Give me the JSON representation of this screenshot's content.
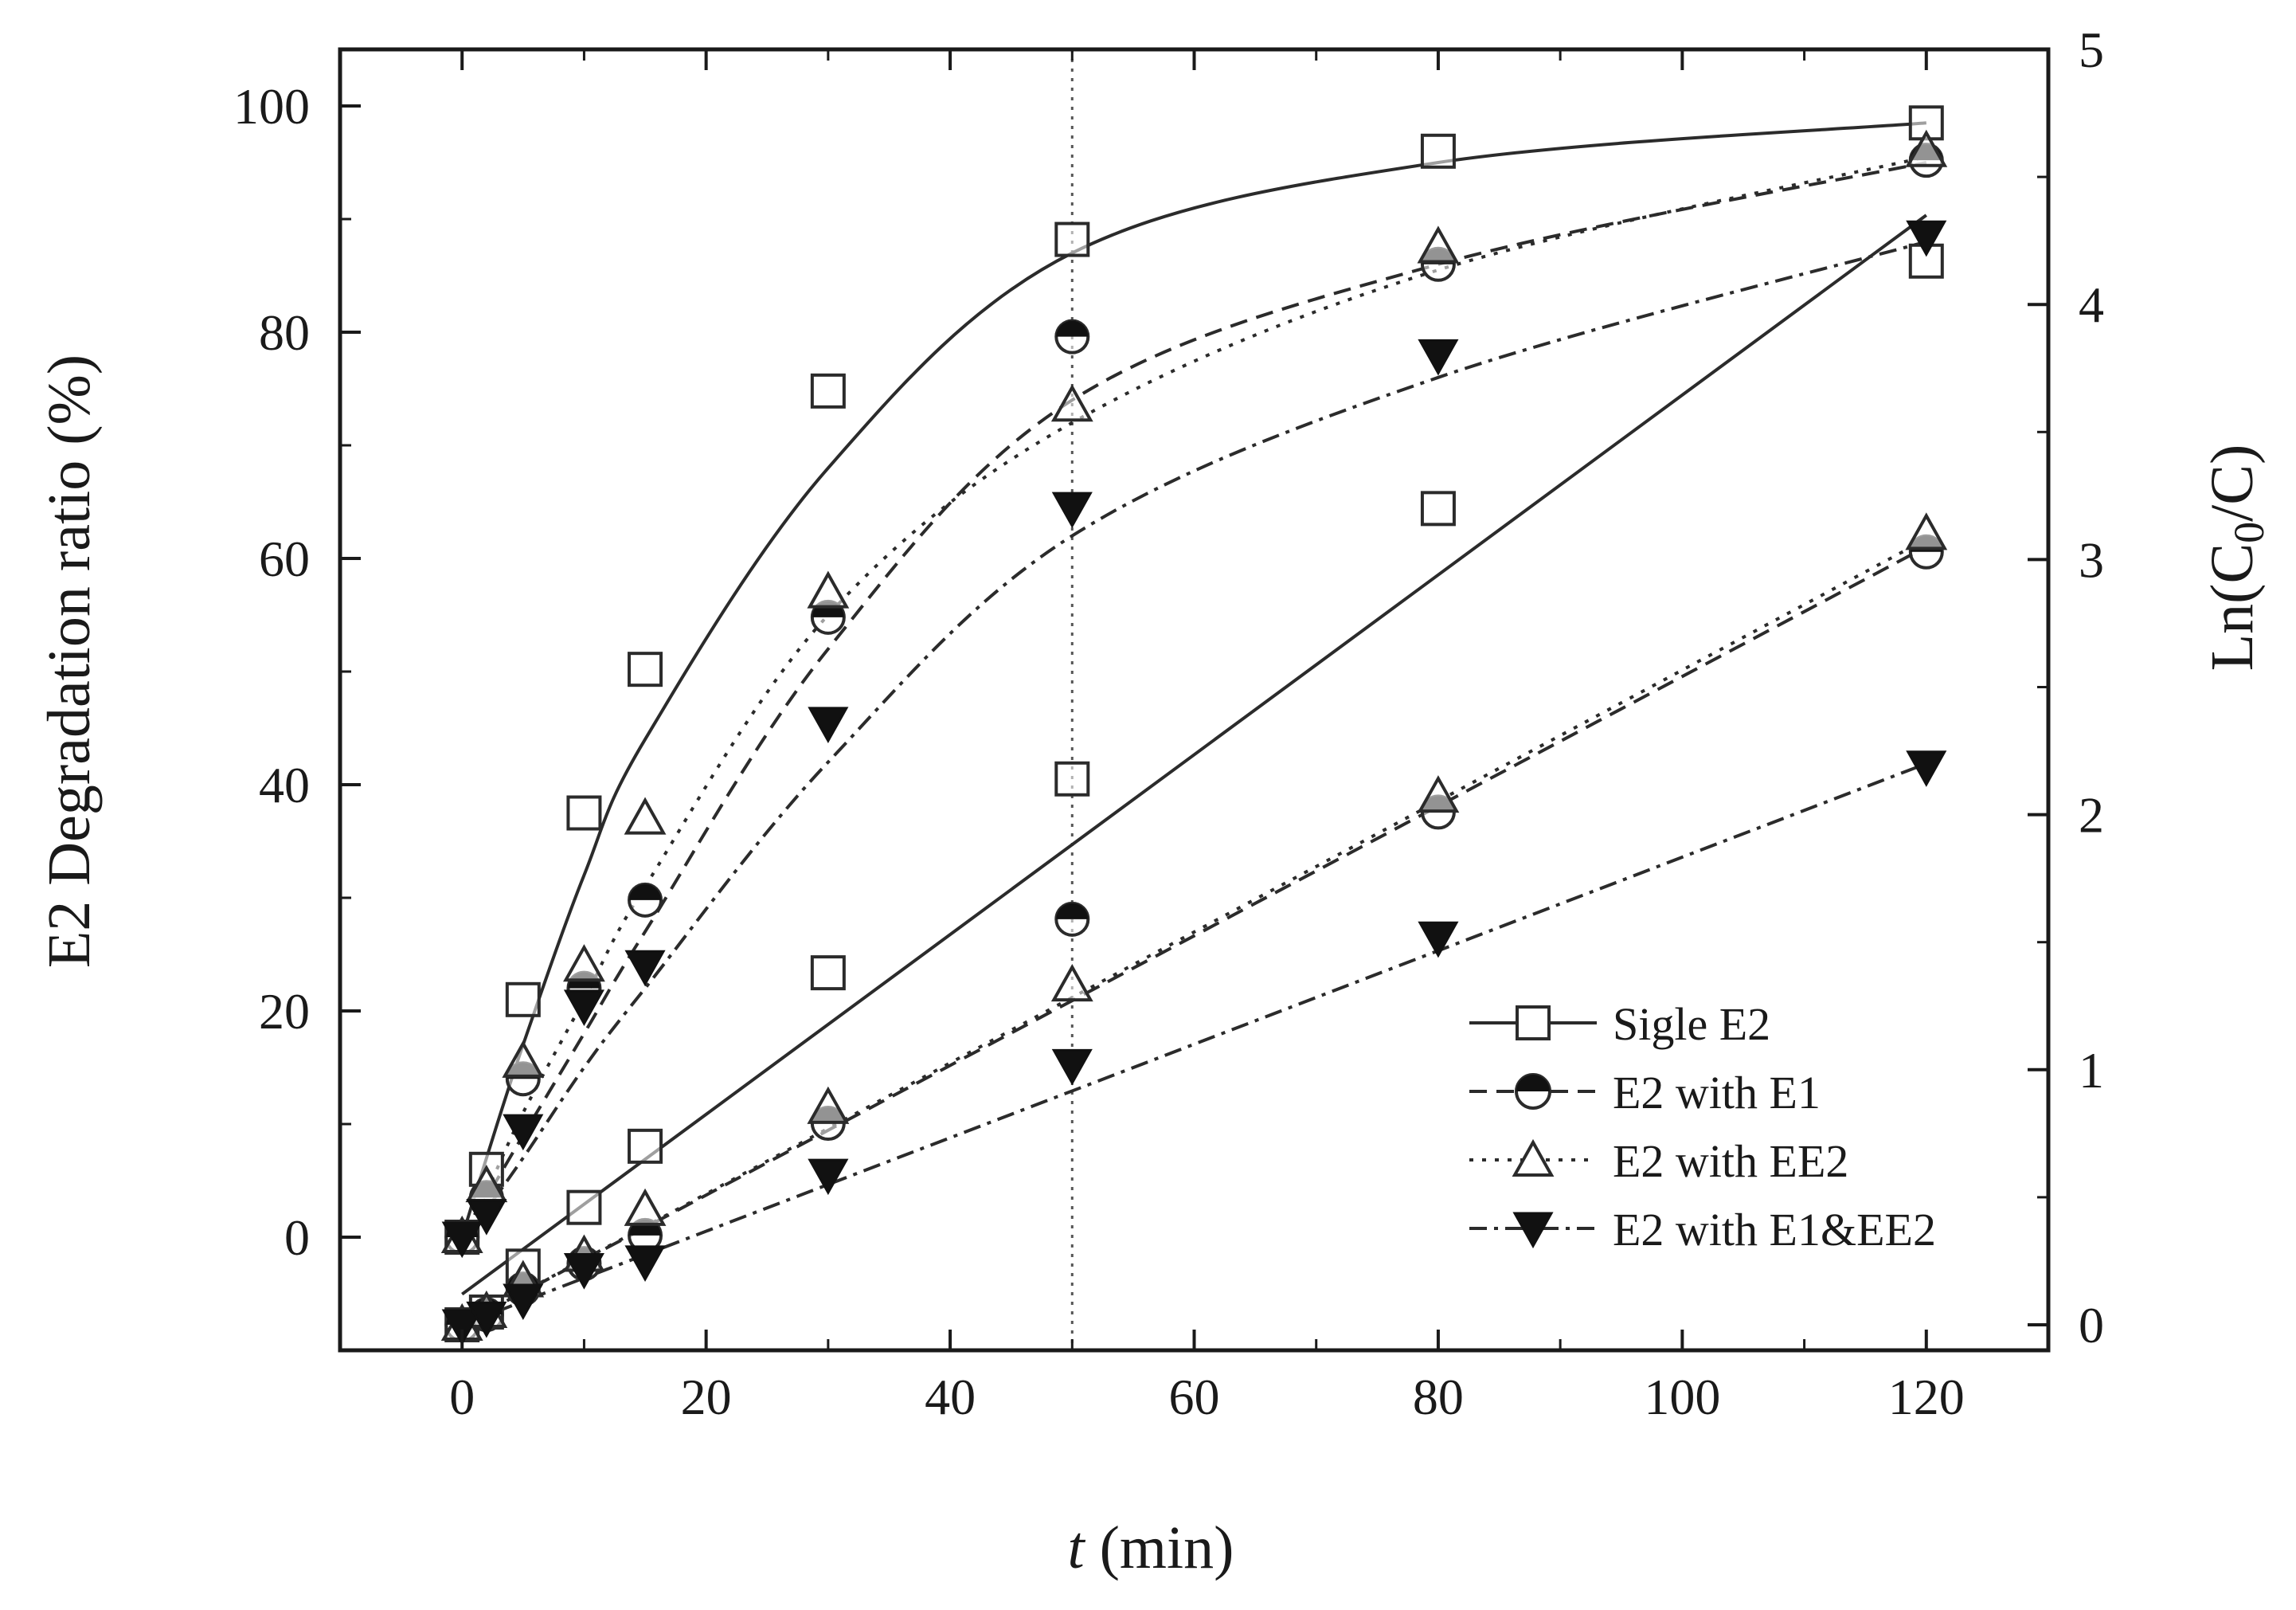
{
  "chart_data": {
    "type": "scatter",
    "xlabel_italic": "t",
    "xlabel_rest": " (min)",
    "ylabel": "E2 Degradation ratio (%)",
    "y2label_pre": "Ln(C",
    "y2label_sub": "0",
    "y2label_post": "/C)",
    "xlim": [
      -10,
      130
    ],
    "ylim": [
      -10,
      105
    ],
    "y2lim": [
      -0.1,
      5
    ],
    "xticks": [
      0,
      20,
      40,
      60,
      80,
      100,
      120
    ],
    "yticks": [
      0,
      20,
      40,
      60,
      80,
      100
    ],
    "y2ticks": [
      0,
      1,
      2,
      3,
      4,
      5
    ],
    "reference_line_x": 50,
    "x": [
      0,
      2,
      5,
      10,
      15,
      30,
      50,
      80,
      120
    ],
    "series": [
      {
        "name": "Sigle E2",
        "marker": "open-square",
        "line": "solid",
        "degradation": [
          0,
          6,
          21,
          37.5,
          50.2,
          74.8,
          88.2,
          96,
          98.5
        ],
        "ln_ratio": [
          0,
          0.05,
          0.23,
          0.46,
          0.7,
          1.38,
          2.14,
          3.2,
          4.17
        ],
        "deg_fit": [
          0,
          7,
          17,
          32,
          44,
          68,
          87,
          95,
          98.5
        ],
        "ln_fit_x": [
          0,
          120
        ],
        "ln_fit": [
          0.12,
          4.35
        ]
      },
      {
        "name": "E2 with E1",
        "marker": "half-circle",
        "line": "dashed",
        "degradation": [
          0,
          3.5,
          14,
          22,
          29.8,
          54.8,
          79.6,
          86,
          95.2
        ],
        "ln_ratio": [
          0,
          0.04,
          0.14,
          0.24,
          0.35,
          0.79,
          1.59,
          2.01,
          3.03
        ],
        "deg_fit": [
          0,
          3.5,
          9,
          18,
          27,
          52,
          74,
          86,
          95
        ],
        "ln_fit_x": [
          0,
          120
        ],
        "ln_fit": [
          0,
          3.05
        ]
      },
      {
        "name": "E2 with EE2",
        "marker": "open-triangle",
        "line": "dotted",
        "degradation": [
          0,
          4.5,
          15.5,
          24,
          37,
          57,
          73.5,
          87.5,
          96
        ],
        "ln_ratio": [
          0,
          0.05,
          0.17,
          0.27,
          0.45,
          0.85,
          1.33,
          2.07,
          3.1
        ],
        "deg_fit": [
          0,
          4,
          11,
          21,
          31,
          55,
          72,
          85.5,
          95.5
        ],
        "ln_fit_x": [
          0,
          120
        ],
        "ln_fit": [
          0,
          3.08
        ]
      },
      {
        "name": "E2 with E1&EE2",
        "marker": "filled-triangle-down",
        "line": "dash-dot",
        "degradation": [
          0,
          2,
          9.5,
          20.5,
          24,
          45.5,
          64.5,
          78,
          88.5
        ],
        "ln_ratio": [
          0,
          0.03,
          0.1,
          0.22,
          0.25,
          0.59,
          1.02,
          1.52,
          2.19
        ],
        "deg_fit": [
          0,
          2.5,
          7,
          15,
          22,
          42,
          62,
          76,
          88
        ],
        "ln_fit_x": [
          0,
          120
        ],
        "ln_fit": [
          0,
          2.2
        ]
      }
    ]
  }
}
